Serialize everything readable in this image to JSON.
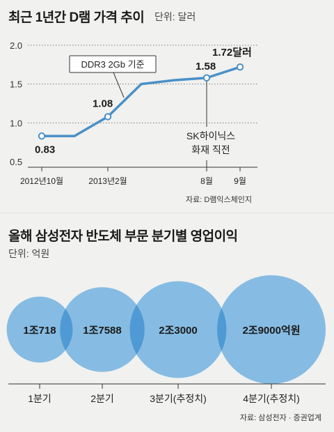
{
  "chart_data": [
    {
      "type": "line",
      "title": "최근 1년간 D램 가격 추이",
      "unit": "단위: 달러",
      "y_ticks": [
        "2.0",
        "1.5",
        "1.0",
        "0.5"
      ],
      "ylim": [
        0.5,
        2.0
      ],
      "x_tick_labels": [
        "2012년10월",
        "2013년2월",
        "8월",
        "9월"
      ],
      "series": [
        {
          "x": [
            0,
            1,
            2,
            3,
            4,
            5,
            6
          ],
          "y": [
            0.83,
            0.83,
            1.08,
            1.5,
            1.55,
            1.58,
            1.72
          ]
        }
      ],
      "labeled_points": [
        {
          "point": 0,
          "label": "0.83"
        },
        {
          "point": 2,
          "label": "1.08"
        },
        {
          "point": 5,
          "label": "1.58"
        },
        {
          "point": 6,
          "label": "1.72달러"
        }
      ],
      "annotations": {
        "callout_box": "DDR3 2Gb 기준",
        "event_line1": "SK하이닉스",
        "event_line2": "화재 직전"
      },
      "source": "자료: D램익스체인지",
      "grid": true,
      "line_color": "#4a90c8"
    },
    {
      "type": "bubble",
      "title": "올해 삼성전자 반도체 부문 분기별 영업이익",
      "unit": "단위: 억원",
      "categories": [
        "1분기",
        "2분기",
        "3분기(추정치)",
        "4분기(추정치)"
      ],
      "values": [
        10718,
        17588,
        23000,
        29000
      ],
      "value_labels": [
        "1조718",
        "1조7588",
        "2조3000",
        "2조9000억원"
      ],
      "source": "자료: 삼성전자 · 증권업계",
      "bubble_color": "#6eb0e0",
      "overlap_color": "#4f9ad4"
    }
  ]
}
